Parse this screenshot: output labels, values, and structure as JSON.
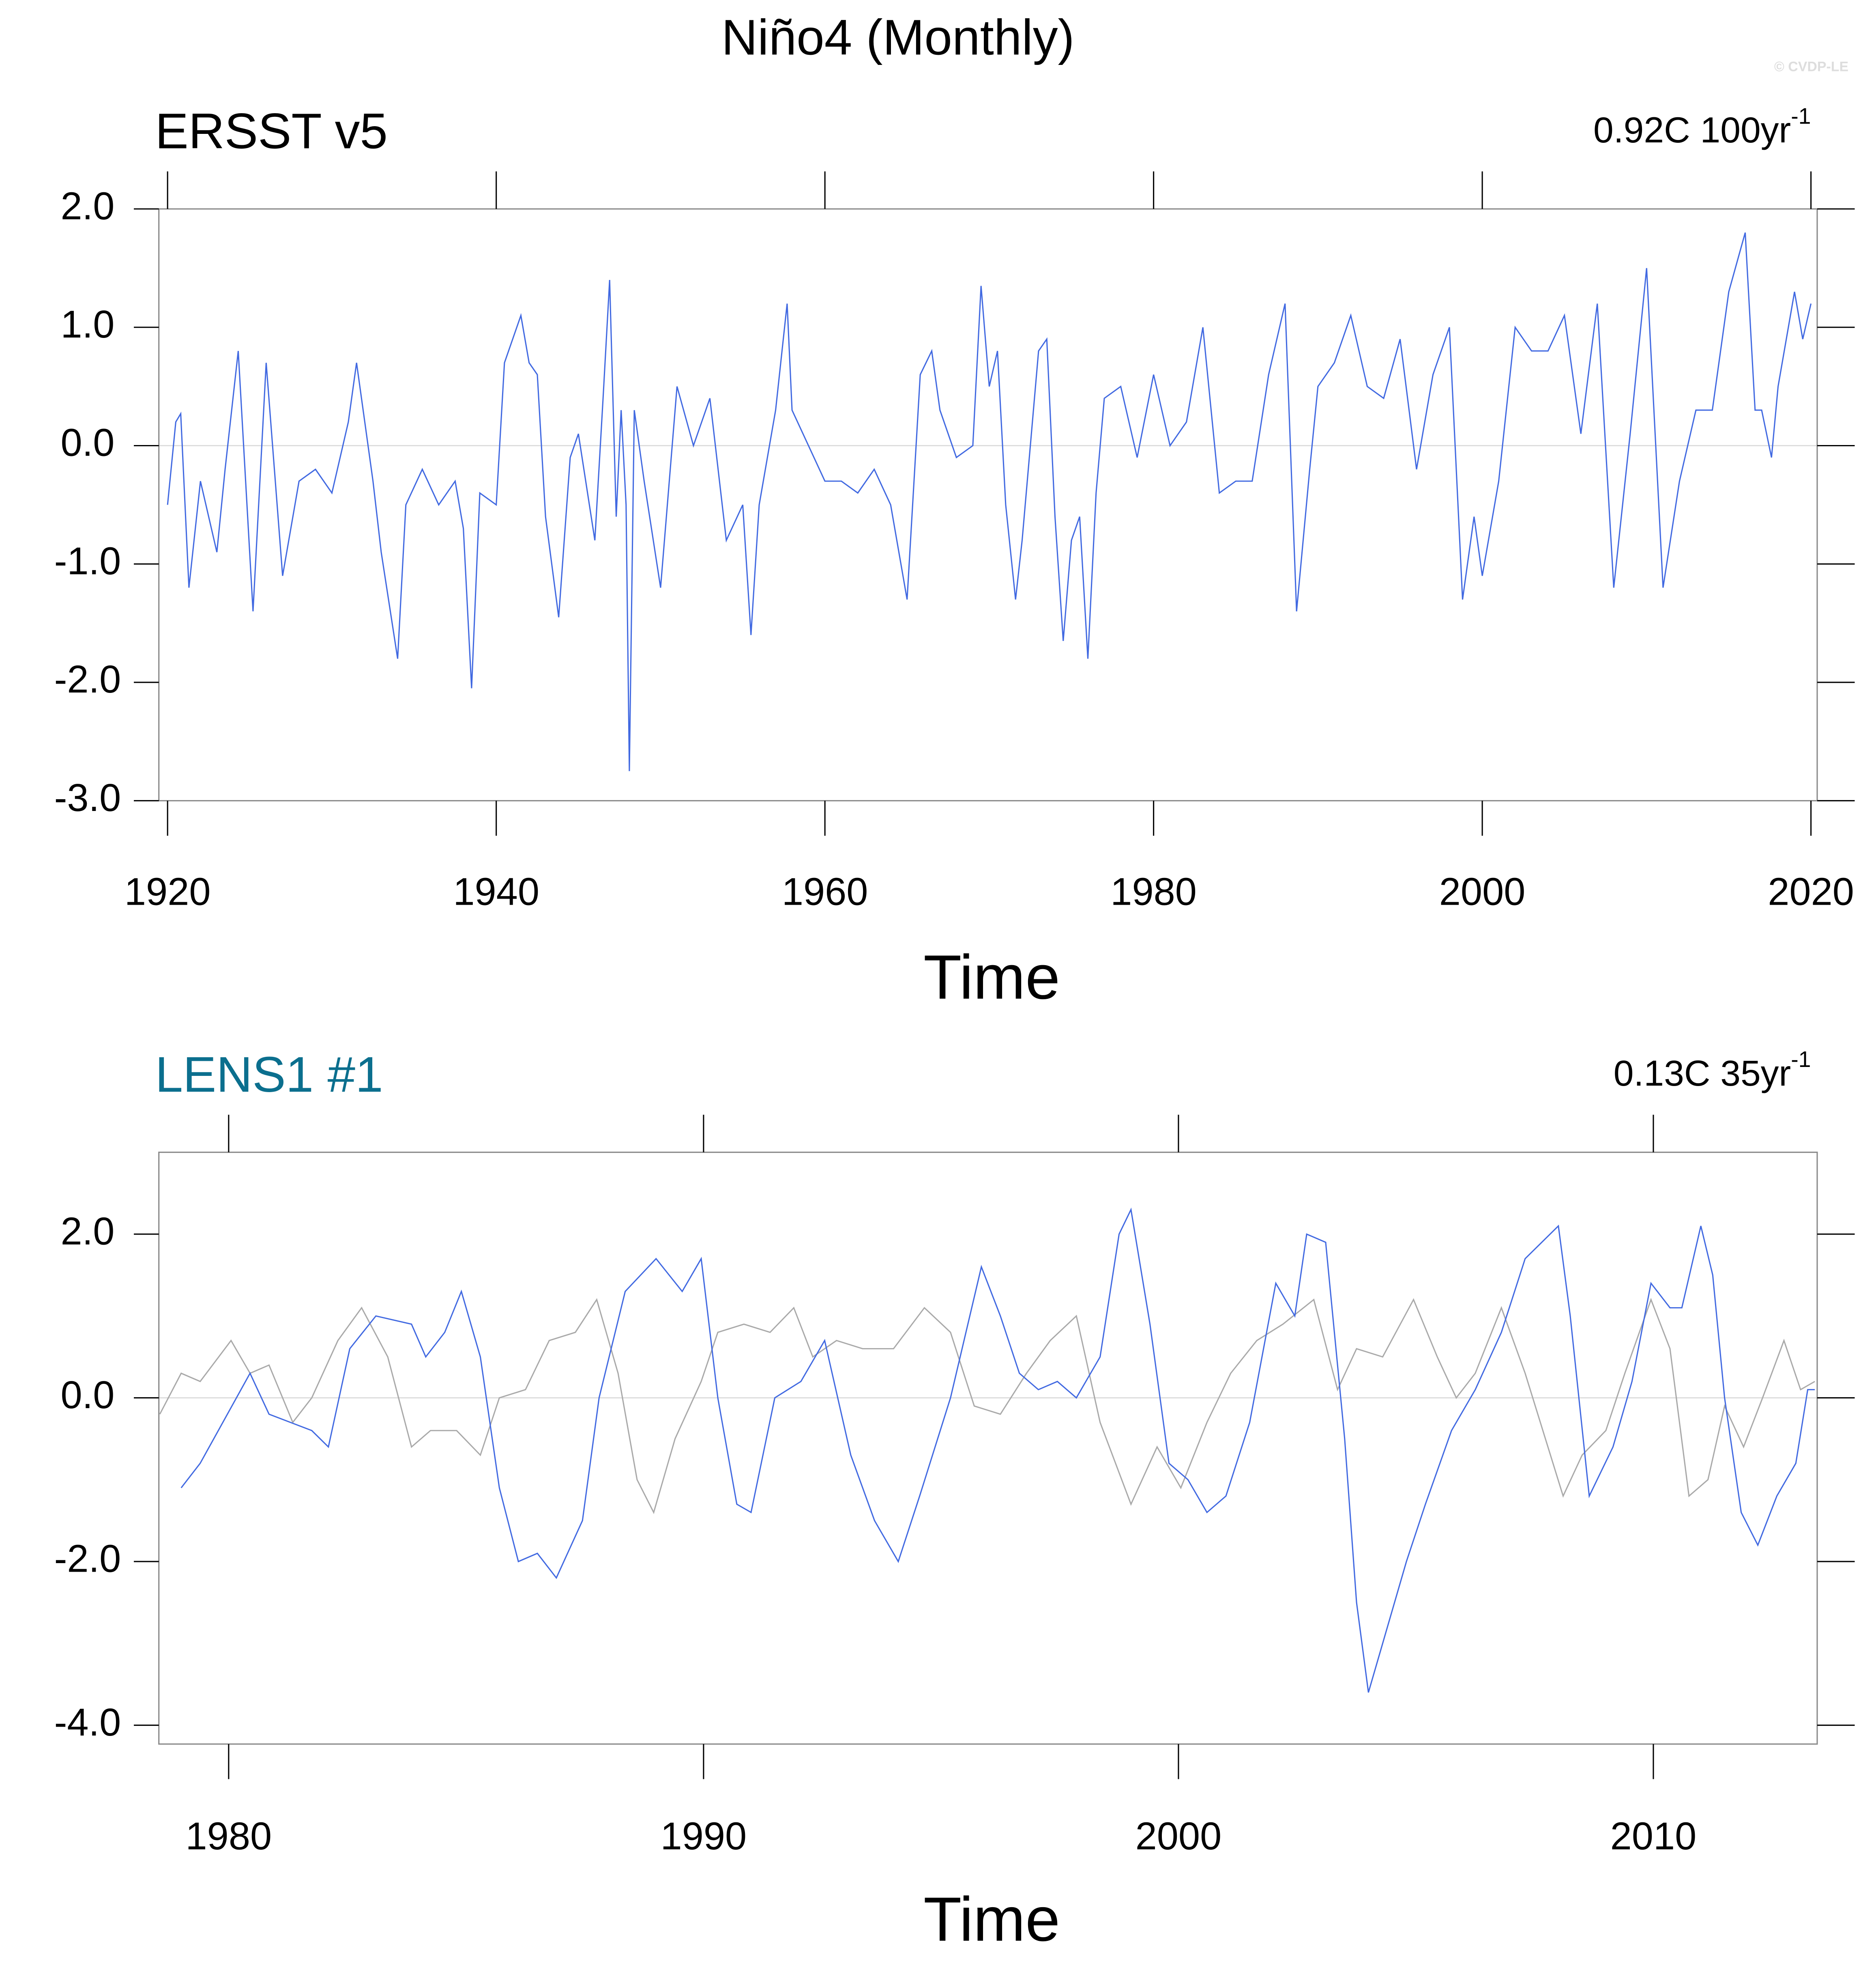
{
  "title": "Niño4 (Monthly)",
  "watermark": "© CVDP-LE",
  "chart_data": [
    {
      "type": "line",
      "title": "ERSST v5",
      "trend": "0.92C 100yr",
      "trend_sup": "-1",
      "xlabel": "Time",
      "xlim": [
        1919.47,
        2020.38
      ],
      "ylim": [
        -3,
        2
      ],
      "zero_line": true,
      "xticks": [
        1920,
        1940,
        1960,
        1980,
        2000,
        2020
      ],
      "yticks": [
        {
          "value": 2,
          "label": "2.0"
        },
        {
          "value": 1,
          "label": "1.0"
        },
        {
          "value": 0,
          "label": "0.0"
        },
        {
          "value": -1,
          "label": "-1.0"
        },
        {
          "value": -2,
          "label": "-2.0"
        },
        {
          "value": -3,
          "label": "-3.0"
        }
      ],
      "series": [
        {
          "color": "#4169e1",
          "x": [
            1920,
            1920.5,
            1920.8,
            1921.3,
            1922,
            1923,
            1923.5,
            1924.3,
            1925.2,
            1926,
            1927,
            1928,
            1929,
            1930,
            1931,
            1931.5,
            1932.5,
            1933,
            1934,
            1934.5,
            1935.5,
            1936.5,
            1937.5,
            1938,
            1938.5,
            1939,
            1940,
            1940.5,
            1941,
            1941.5,
            1942,
            1942.5,
            1943,
            1943.8,
            1944.5,
            1945,
            1946,
            1946.5,
            1946.9,
            1947.3,
            1947.6,
            1947.9,
            1948.1,
            1948.4,
            1949,
            1950,
            1951,
            1952,
            1953,
            1954,
            1955,
            1955.5,
            1956,
            1957,
            1957.7,
            1958,
            1959,
            1960,
            1961,
            1962,
            1963,
            1964,
            1964.5,
            1965,
            1965.8,
            1966.5,
            1967,
            1968,
            1969,
            1969.5,
            1970,
            1970.5,
            1971,
            1971.6,
            1972,
            1973,
            1973.5,
            1974,
            1974.5,
            1975,
            1975.5,
            1976,
            1976.5,
            1977,
            1978,
            1979,
            1980,
            1981,
            1982,
            1983,
            1984,
            1985,
            1986,
            1987,
            1988,
            1988.7,
            1989.5,
            1990,
            1991,
            1992,
            1993,
            1994,
            1995,
            1996,
            1997,
            1998,
            1998.8,
            1999.5,
            2000,
            2001,
            2002,
            2003,
            2004,
            2005,
            2006,
            2007,
            2008,
            2009,
            2010,
            2011,
            2012,
            2013,
            2014,
            2015,
            2016,
            2016.6,
            2017,
            2017.6,
            2018,
            2019,
            2019.5,
            2020
          ],
          "values": [
            -0.5,
            0.2,
            0.27,
            -1.2,
            -0.3,
            -0.9,
            -0.2,
            0.8,
            -1.4,
            0.7,
            -1.1,
            -0.3,
            -0.2,
            -0.4,
            0.2,
            0.7,
            -0.3,
            -0.9,
            -1.8,
            -0.5,
            -0.2,
            -0.5,
            -0.3,
            -0.7,
            -2.05,
            -0.4,
            -0.5,
            0.7,
            0.9,
            1.1,
            0.7,
            0.6,
            -0.6,
            -1.45,
            -0.1,
            0.1,
            -0.8,
            0.4,
            1.4,
            -0.6,
            0.3,
            -0.5,
            -2.75,
            0.3,
            -0.3,
            -1.2,
            0.5,
            0.0,
            0.4,
            -0.8,
            -0.5,
            -1.6,
            -0.5,
            0.3,
            1.2,
            0.3,
            0.0,
            -0.3,
            -0.3,
            -0.4,
            -0.2,
            -0.5,
            -0.9,
            -1.3,
            0.6,
            0.8,
            0.3,
            -0.1,
            0.0,
            1.35,
            0.5,
            0.8,
            -0.5,
            -1.3,
            -0.8,
            0.8,
            0.9,
            -0.6,
            -1.65,
            -0.8,
            -0.6,
            -1.8,
            -0.4,
            0.4,
            0.5,
            -0.1,
            0.6,
            0.0,
            0.2,
            1.0,
            -0.4,
            -0.3,
            -0.3,
            0.6,
            1.2,
            -1.4,
            -0.2,
            0.5,
            0.7,
            1.1,
            0.5,
            0.4,
            0.9,
            -0.2,
            0.6,
            1.0,
            -1.3,
            -0.6,
            -1.1,
            -0.3,
            1.0,
            0.8,
            0.8,
            1.1,
            0.1,
            1.2,
            -1.2,
            0.1,
            1.5,
            -1.2,
            -0.3,
            0.3,
            0.3,
            1.3,
            1.8,
            0.3,
            0.3,
            -0.1,
            0.5,
            1.3,
            0.9,
            1.2
          ]
        }
      ]
    },
    {
      "type": "line",
      "title": "LENS1 #1",
      "title_color": "#0b6f8e",
      "trend": "0.13C 35yr",
      "trend_sup": "-1",
      "xlabel": "Time",
      "xlim": [
        1978.53,
        2013.45
      ],
      "ylim": [
        -4.23,
        3.0
      ],
      "zero_line": true,
      "xticks": [
        1980,
        1990,
        2000,
        2010
      ],
      "yticks": [
        {
          "value": 2,
          "label": "2.0"
        },
        {
          "value": 0,
          "label": "0.0"
        },
        {
          "value": -2,
          "label": "-2.0"
        },
        {
          "value": -4,
          "label": "-4.0"
        }
      ],
      "series": [
        {
          "color": "#a9a9a9",
          "x": [
            1978.55,
            1979.0,
            1979.4,
            1980.05,
            1980.45,
            1980.85,
            1981.35,
            1981.75,
            1982.3,
            1982.8,
            1983.35,
            1983.85,
            1984.25,
            1984.8,
            1985.3,
            1985.7,
            1986.25,
            1986.75,
            1987.3,
            1987.75,
            1988.2,
            1988.6,
            1988.95,
            1989.4,
            1989.95,
            1990.3,
            1990.85,
            1991.4,
            1991.9,
            1992.3,
            1992.8,
            1993.35,
            1994.0,
            1994.65,
            1995.2,
            1995.7,
            1996.25,
            1996.8,
            1997.3,
            1997.85,
            1998.35,
            1999.0,
            1999.55,
            2000.05,
            2000.6,
            2001.1,
            2001.65,
            2002.2,
            2002.85,
            2003.35,
            2003.75,
            2004.3,
            2004.95,
            2005.45,
            2005.85,
            2006.25,
            2006.8,
            2007.3,
            2008.1,
            2008.5,
            2009.0,
            2009.4,
            2009.95,
            2010.35,
            2010.75,
            2011.15,
            2011.5,
            2011.9,
            2012.3,
            2012.75,
            2013.1,
            2013.4
          ],
          "values": [
            -0.2,
            0.3,
            0.2,
            0.7,
            0.3,
            0.4,
            -0.3,
            0.0,
            0.7,
            1.1,
            0.5,
            -0.6,
            -0.4,
            -0.4,
            -0.7,
            0.0,
            0.1,
            0.7,
            0.8,
            1.2,
            0.3,
            -1.0,
            -1.4,
            -0.5,
            0.2,
            0.8,
            0.9,
            0.8,
            1.1,
            0.5,
            0.7,
            0.6,
            0.6,
            1.1,
            0.8,
            -0.1,
            -0.2,
            0.3,
            0.7,
            1.0,
            -0.3,
            -1.3,
            -0.6,
            -1.1,
            -0.3,
            0.3,
            0.7,
            0.9,
            1.2,
            0.1,
            0.6,
            0.5,
            1.2,
            0.5,
            0.0,
            0.3,
            1.1,
            0.3,
            -1.2,
            -0.7,
            -0.4,
            0.3,
            1.2,
            0.6,
            -1.2,
            -1.0,
            -0.1,
            -0.6,
            0.0,
            0.7,
            0.1,
            0.2
          ]
        },
        {
          "color": "#4169e1",
          "x": [
            1979.0,
            1979.4,
            1980.45,
            1980.85,
            1981.75,
            1982.1,
            1982.55,
            1983.1,
            1983.85,
            1984.15,
            1984.55,
            1984.9,
            1985.3,
            1985.7,
            1986.1,
            1986.5,
            1986.9,
            1987.45,
            1987.8,
            1988.35,
            1989.0,
            1989.55,
            1989.95,
            1990.3,
            1990.7,
            1991.0,
            1991.5,
            1992.05,
            1992.55,
            1993.1,
            1993.6,
            1994.1,
            1994.55,
            1995.2,
            1995.85,
            1996.25,
            1996.65,
            1997.05,
            1997.45,
            1997.85,
            1998.35,
            1998.75,
            1999.0,
            1999.4,
            1999.8,
            2000.2,
            2000.6,
            2001.0,
            2001.5,
            2002.05,
            2002.45,
            2002.7,
            2003.1,
            2003.5,
            2003.75,
            2004.0,
            2004.4,
            2004.8,
            2005.2,
            2005.75,
            2006.25,
            2006.8,
            2007.3,
            2008.0,
            2008.25,
            2008.65,
            2009.15,
            2009.55,
            2009.95,
            2010.35,
            2010.6,
            2011.0,
            2011.25,
            2011.5,
            2011.85,
            2012.2,
            2012.6,
            2013.0,
            2013.25,
            2013.4
          ],
          "values": [
            -1.1,
            -0.8,
            0.3,
            -0.2,
            -0.4,
            -0.6,
            0.6,
            1.0,
            0.9,
            0.5,
            0.8,
            1.3,
            0.5,
            -1.1,
            -2.0,
            -1.9,
            -2.2,
            -1.5,
            0.0,
            1.3,
            1.7,
            1.3,
            1.7,
            0.0,
            -1.3,
            -1.4,
            0.0,
            0.2,
            0.7,
            -0.7,
            -1.5,
            -2.0,
            -1.2,
            0.0,
            1.6,
            1.0,
            0.3,
            0.1,
            0.2,
            0.0,
            0.5,
            2.0,
            2.3,
            0.9,
            -0.8,
            -1.0,
            -1.4,
            -1.2,
            -0.3,
            1.4,
            1.0,
            2.0,
            1.9,
            -0.5,
            -2.5,
            -3.6,
            -2.8,
            -2.0,
            -1.3,
            -0.4,
            0.1,
            0.8,
            1.7,
            2.1,
            1.0,
            -1.2,
            -0.6,
            0.2,
            1.4,
            1.1,
            1.1,
            2.1,
            1.5,
            0.0,
            -1.4,
            -1.8,
            -1.2,
            -0.8,
            0.1,
            0.1
          ]
        }
      ]
    }
  ]
}
